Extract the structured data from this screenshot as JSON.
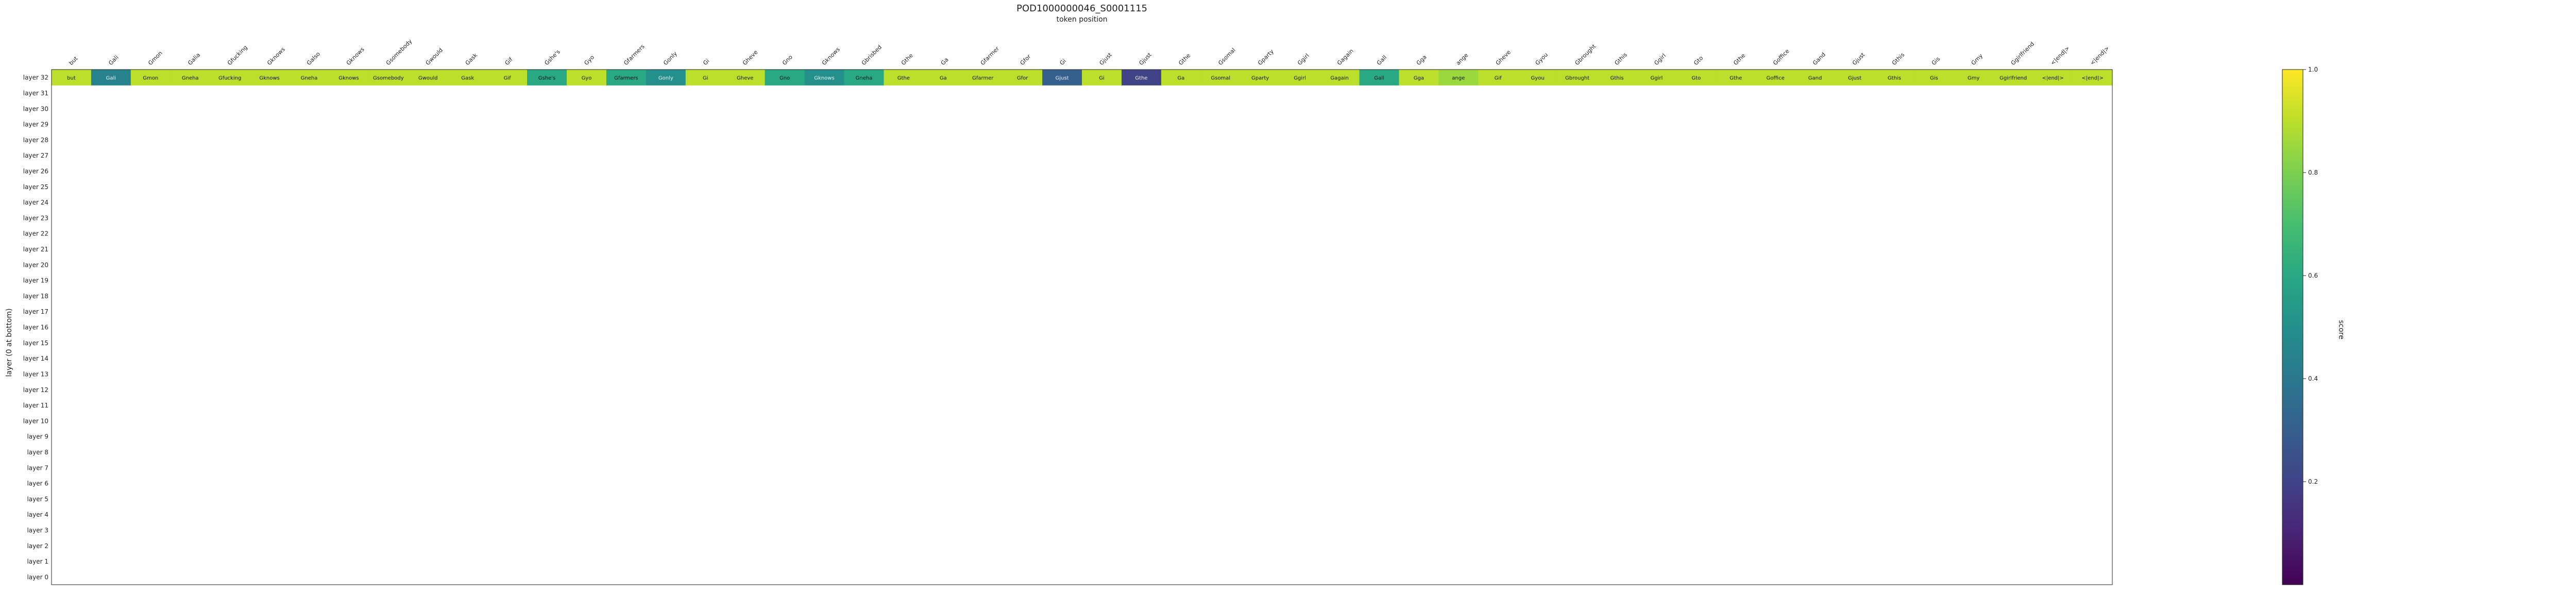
{
  "chart_data": {
    "type": "heatmap",
    "title": "POD1000000046_S0001115",
    "xlabel": "token position",
    "ylabel": "layer (0 at bottom)",
    "colorbar_label": "score",
    "colorbar_ticks": [
      0.2,
      0.4,
      0.6,
      0.8,
      1.0
    ],
    "vmin": 0.0,
    "vmax": 1.0,
    "colormap": "viridis",
    "x_tokens": [
      "but",
      "Gali",
      "Gmon",
      "Galia",
      "Gfucking",
      "Gknows",
      "Galso",
      "Gknows",
      "Gsomebody",
      "Gwould",
      "Gask",
      "Gif",
      "Gshe's",
      "Gyo",
      "Gfarmers",
      "Gonly",
      "Gi",
      "Gheve",
      "Gno",
      "Gknows",
      "Gbrisbed",
      "Gthe",
      "Ga",
      "Gfarmer",
      "Gfor",
      "Gi",
      "Gjust",
      "Gjust",
      "Gthe",
      "Gsomal",
      "Gparty",
      "Ggirl",
      "Gagain",
      "Gall",
      "Gga",
      "ange",
      "Gheve",
      "Gyou",
      "Gbrought",
      "Gthis",
      "Ggirl",
      "Gto",
      "Gthe",
      "Goffice",
      "Gand",
      "Gjust",
      "Gthis",
      "Gis",
      "Gmy",
      "Ggirlfriend",
      "<|end|>",
      "<|end|>"
    ],
    "layers": [
      "layer 0",
      "layer 1",
      "layer 2",
      "layer 3",
      "layer 4",
      "layer 5",
      "layer 6",
      "layer 7",
      "layer 8",
      "layer 9",
      "layer 10",
      "layer 11",
      "layer 12",
      "layer 13",
      "layer 14",
      "layer 15",
      "layer 16",
      "layer 17",
      "layer 18",
      "layer 19",
      "layer 20",
      "layer 21",
      "layer 22",
      "layer 23",
      "layer 24",
      "layer 25",
      "layer 26",
      "layer 27",
      "layer 28",
      "layer 29",
      "layer 30",
      "layer 31",
      "layer 32"
    ],
    "rows": {
      "layer 32": [
        [
          "but",
          0.9
        ],
        [
          "Gali",
          0.45
        ],
        [
          "Gmon",
          0.9
        ],
        [
          "Gneha",
          0.9
        ],
        [
          "Gfucking",
          0.9
        ],
        [
          "Gknows",
          0.9
        ],
        [
          "Gneha",
          0.9
        ],
        [
          "Gknows",
          0.9
        ],
        [
          "Gsomebody",
          0.9
        ],
        [
          "Gwould",
          0.9
        ],
        [
          "Gask",
          0.9
        ],
        [
          "Gif",
          0.9
        ],
        [
          "Gshe's",
          0.6
        ],
        [
          "Gyo",
          0.9
        ],
        [
          "Gfarmers",
          0.6
        ],
        [
          "Gonly",
          0.5
        ],
        [
          "Gi",
          0.9
        ],
        [
          "Gheve",
          0.9
        ],
        [
          "Gno",
          0.6
        ],
        [
          "Gknows",
          0.5
        ],
        [
          "Gneha",
          0.6
        ],
        [
          "Gthe",
          0.9
        ],
        [
          "Ga",
          0.9
        ],
        [
          "Gfarmer",
          0.9
        ],
        [
          "Gfor",
          0.9
        ],
        [
          "Gjust",
          0.3
        ],
        [
          "Gi",
          0.9
        ],
        [
          "Gthe",
          0.2
        ],
        [
          "Ga",
          0.9
        ],
        [
          "Gsomal",
          0.9
        ],
        [
          "Gparty",
          0.9
        ],
        [
          "Ggirl",
          0.9
        ],
        [
          "Gagain",
          0.9
        ],
        [
          "Gall",
          0.6
        ],
        [
          "Gga",
          0.9
        ],
        [
          "ange",
          0.85
        ],
        [
          "Gif",
          0.9
        ],
        [
          "Gyou",
          0.9
        ],
        [
          "Gbrought",
          0.9
        ],
        [
          "Gthis",
          0.9
        ],
        [
          "Ggirl",
          0.9
        ],
        [
          "Gto",
          0.9
        ],
        [
          "Gthe",
          0.9
        ],
        [
          "Goffice",
          0.9
        ],
        [
          "Gand",
          0.9
        ],
        [
          "Gjust",
          0.9
        ],
        [
          "Gthis",
          0.9
        ],
        [
          "Gis",
          0.9
        ],
        [
          "Gmy",
          0.9
        ],
        [
          "Ggirlfriend",
          0.9
        ],
        [
          "<|end|>",
          0.9
        ],
        [
          "<|end|>",
          0.9
        ]
      ]
    }
  }
}
